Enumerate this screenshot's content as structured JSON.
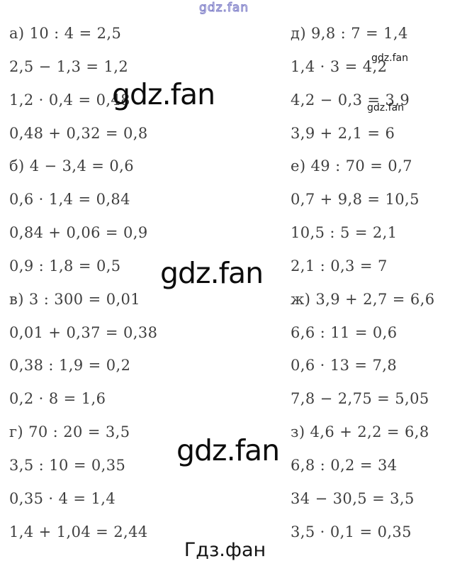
{
  "page": {
    "footer": "Гдз.фан"
  },
  "watermarks": {
    "top": "gdz.fan",
    "big1": "gdz.fan",
    "big2": "gdz.fan",
    "big3": "gdz.fan",
    "small1": "gdz.fan",
    "small2": "gdz.fan"
  },
  "columns": {
    "left": [
      "а) 10 : 4 = 2,5",
      "2,5 − 1,3 = 1,2",
      "1,2 · 0,4 = 0,48",
      "0,48 + 0,32 = 0,8",
      "б) 4 − 3,4 = 0,6",
      "0,6 · 1,4 = 0,84",
      "0,84 + 0,06 = 0,9",
      "0,9 : 1,8 = 0,5",
      "в) 3 : 300 = 0,01",
      "0,01 + 0,37 = 0,38",
      "0,38 : 1,9 = 0,2",
      "0,2 · 8 = 1,6",
      "г) 70 : 20 = 3,5",
      "3,5 : 10 = 0,35",
      "0,35 · 4 = 1,4",
      "1,4 + 1,04 = 2,44"
    ],
    "right": [
      "д) 9,8 : 7 = 1,4",
      "1,4 · 3 = 4,2",
      "4,2 − 0,3 = 3,9",
      "3,9 + 2,1 = 6",
      "е) 49 : 70 = 0,7",
      "0,7 + 9,8 = 10,5",
      "10,5 : 5 = 2,1",
      "2,1 : 0,3 = 7",
      "ж) 3,9 + 2,7 = 6,6",
      "6,6 : 11 = 0,6",
      "0,6 · 13 = 7,8",
      "7,8 − 2,75 = 5,05",
      "з) 4,6 + 2,2 = 6,8",
      "6,8 : 0,2 = 34",
      "34 − 30,5 = 3,5",
      "3,5 · 0,1 = 0,35"
    ]
  },
  "colors": {
    "equation_text": "#3f3f3f",
    "watermark_big": "#0c0c0c",
    "watermark_top_outline": "#8080c8",
    "footer_text": "#141414",
    "background": "#ffffff"
  }
}
